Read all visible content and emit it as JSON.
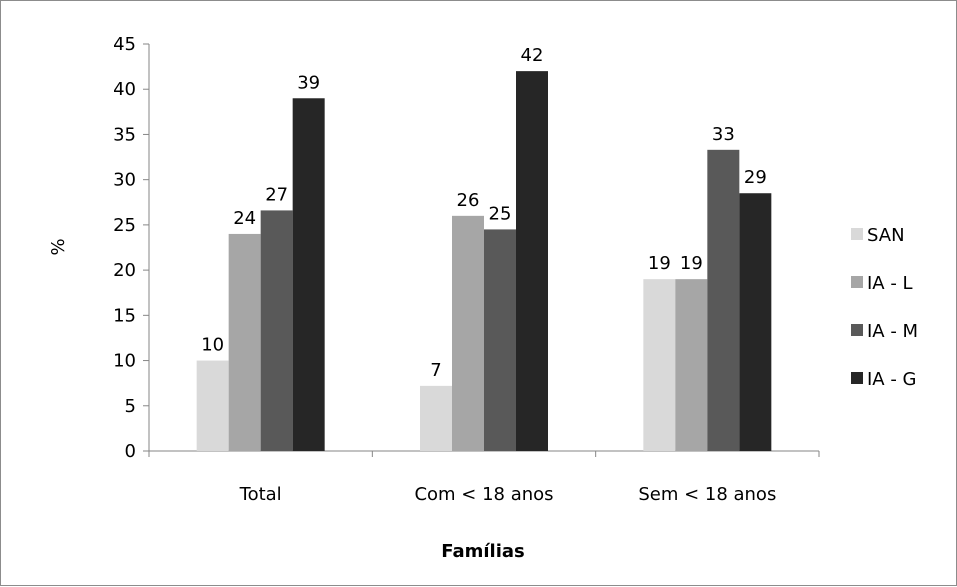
{
  "chart_data": {
    "type": "bar",
    "categories": [
      "Total",
      "Com < 18 anos",
      "Sem < 18 anos"
    ],
    "series": [
      {
        "name": "SAN",
        "values": [
          10,
          7.2,
          19
        ],
        "labels": [
          "10",
          "7",
          "19"
        ],
        "color": "#d9d9d9"
      },
      {
        "name": "IA - L",
        "values": [
          24,
          26,
          19
        ],
        "labels": [
          "24",
          "26",
          "19"
        ],
        "color": "#a6a6a6"
      },
      {
        "name": "IA - M",
        "values": [
          26.6,
          24.5,
          33.3
        ],
        "labels": [
          "27",
          "25",
          "33"
        ],
        "color": "#595959"
      },
      {
        "name": "IA - G",
        "values": [
          39,
          42,
          28.5
        ],
        "labels": [
          "39",
          "42",
          "29"
        ],
        "color": "#262626"
      }
    ],
    "title": "",
    "xlabel": "Famílias",
    "ylabel": "%",
    "ylim": [
      0,
      45
    ],
    "yticks": [
      "0",
      "5",
      "10",
      "15",
      "20",
      "25",
      "30",
      "35",
      "40",
      "45"
    ],
    "grid": false,
    "legend": "right"
  }
}
